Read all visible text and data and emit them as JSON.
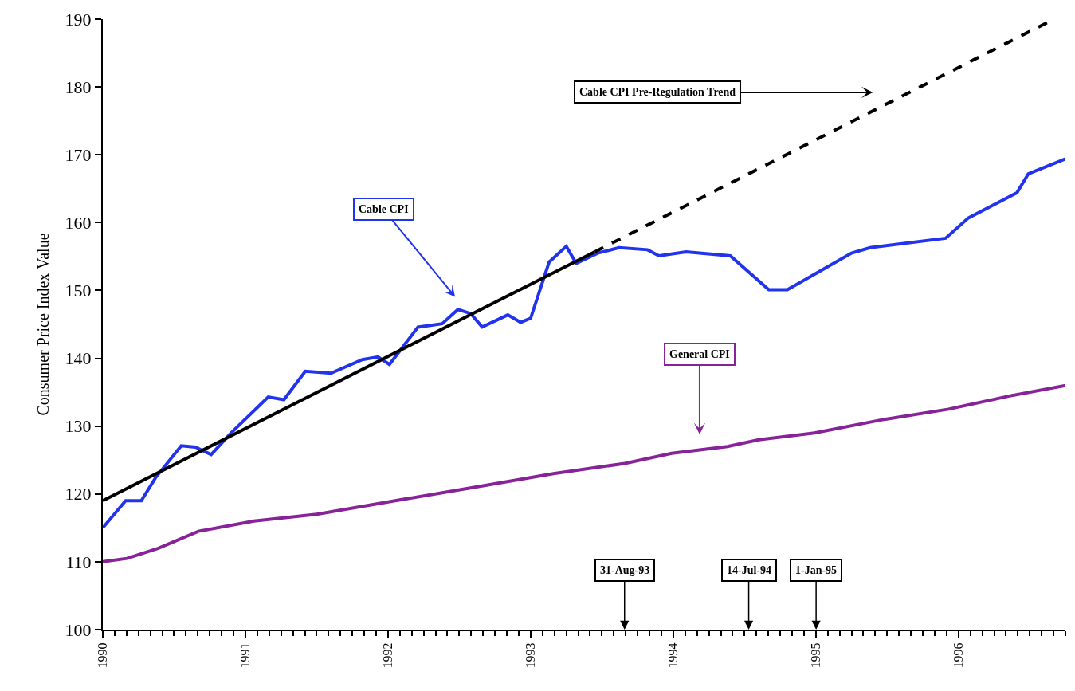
{
  "chart_data": {
    "type": "line",
    "ylabel": "Consumer Price Index Value",
    "xlim": [
      1990,
      1996.75
    ],
    "xticks": [
      1990,
      1991,
      1992,
      1993,
      1994,
      1995,
      1996
    ],
    "ylim": [
      100,
      190
    ],
    "yticks": [
      100,
      110,
      120,
      130,
      140,
      150,
      160,
      170,
      180,
      190
    ],
    "marker": "none",
    "series": [
      {
        "color": "#2233ee",
        "line_style": "solid",
        "x": [
          1990.0,
          1990.16,
          1990.27,
          1990.37,
          1990.55,
          1990.65,
          1990.76,
          1990.9,
          1991.16,
          1991.27,
          1991.42,
          1991.6,
          1991.82,
          1991.93,
          1992.01,
          1992.21,
          1992.38,
          1992.49,
          1992.58,
          1992.66,
          1992.84,
          1992.93,
          1993.0,
          1993.13,
          1993.25,
          1993.32,
          1993.47,
          1993.62,
          1993.82,
          1993.9,
          1994.09,
          1994.4,
          1994.67,
          1994.8,
          1995.25,
          1995.38,
          1995.91,
          1996.07,
          1996.41,
          1996.49,
          1996.75
        ],
        "values": [
          115,
          119,
          119,
          122.4,
          127.1,
          126.9,
          125.8,
          129,
          134.3,
          133.9,
          138.1,
          137.8,
          139.8,
          140.2,
          139.1,
          144.6,
          145.1,
          147.2,
          146.6,
          144.6,
          146.4,
          145.3,
          145.9,
          154.2,
          156.5,
          154,
          155.5,
          156.3,
          156,
          155.1,
          155.7,
          155.1,
          150.1,
          150.1,
          155.5,
          156.3,
          157.7,
          160.7,
          164.4,
          167.2,
          169.4
        ]
      },
      {
        "color": "#882299",
        "line_style": "solid",
        "x": [
          1990.0,
          1990.17,
          1990.39,
          1990.67,
          1991.06,
          1991.5,
          1992.05,
          1992.61,
          1993.16,
          1993.66,
          1993.99,
          1994.38,
          1994.6,
          1994.99,
          1995.48,
          1995.93,
          1996.37,
          1996.75
        ],
        "values": [
          110,
          110.5,
          112,
          114.5,
          116,
          117,
          119,
          121,
          123,
          124.5,
          126,
          127,
          128,
          129,
          131,
          132.5,
          134.5,
          136
        ]
      },
      {
        "color": "#000000",
        "line_style": "solid",
        "x": [
          1990.0,
          1993.45
        ],
        "values": [
          119,
          155.7
        ]
      },
      {
        "color": "#000000",
        "line_style": "dashed",
        "x": [
          1993.45,
          1996.67
        ],
        "values": [
          155.7,
          190
        ]
      }
    ],
    "annotations": [
      "Cable CPI",
      "General CPI",
      "Cable CPI Pre-Regulation Trend",
      "31-Aug-93",
      "14-Jul-94",
      "1-Jan-95"
    ]
  }
}
